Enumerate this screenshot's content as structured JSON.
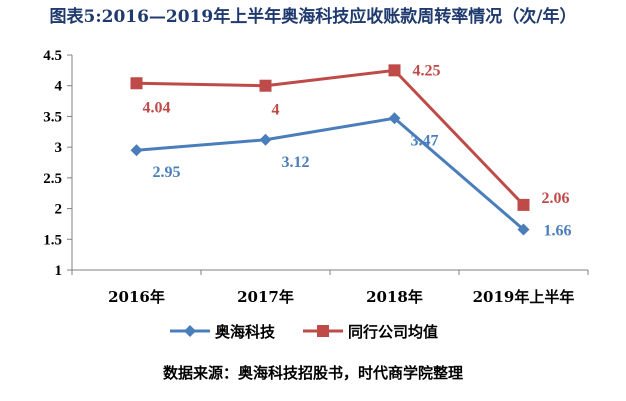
{
  "chart_data": {
    "type": "line",
    "title": "图表5:2016—2019年上半年奥海科技应收账款周转率情况（次/年）",
    "categories": [
      "2016年",
      "2017年",
      "2018年",
      "2019年上半年"
    ],
    "ylim": [
      1,
      4.5
    ],
    "yticks": [
      "1",
      "1.5",
      "2",
      "2.5",
      "3",
      "3.5",
      "4",
      "4.5"
    ],
    "ytick_values": [
      1,
      1.5,
      2,
      2.5,
      3,
      3.5,
      4,
      4.5
    ],
    "grid": false,
    "legend_position": "bottom",
    "series": [
      {
        "name": "奥海科技",
        "values": [
          2.95,
          3.12,
          3.47,
          1.66
        ],
        "labels": [
          "2.95",
          "3.12",
          "3.47",
          "1.66"
        ],
        "color": "#4a7ebb",
        "marker": "diamond"
      },
      {
        "name": "同行公司均值",
        "values": [
          4.04,
          4,
          4.25,
          2.06
        ],
        "labels": [
          "4.04",
          "4",
          "4.25",
          "2.06"
        ],
        "color": "#be4b48",
        "marker": "square"
      }
    ]
  },
  "footer": {
    "source": "数据来源：奥海科技招股书，时代商学院整理"
  }
}
